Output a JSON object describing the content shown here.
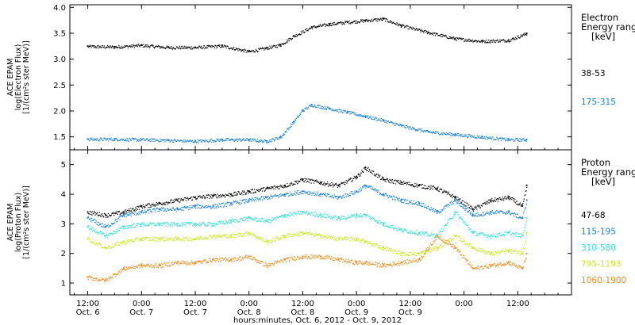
{
  "chart_data": [
    {
      "type": "scatter",
      "panel": "electron",
      "ylabel_lines": [
        "ACE EPAM",
        "log(Electron Flux)",
        "[1/(cm²s ster MeV)]"
      ],
      "ylim": [
        1.25,
        4.05
      ],
      "yticks": [
        1.5,
        2.0,
        2.5,
        3.0,
        3.5,
        4.0
      ],
      "ytick_labels": [
        "1.5",
        "2.0",
        "2.5",
        "3.0",
        "3.5",
        "4.0"
      ],
      "legend_title_lines": [
        "Electron",
        "Energy range",
        "[keV]"
      ],
      "series": [
        {
          "name": "38-53",
          "color": "#000000",
          "x": [
            0,
            6,
            12,
            18,
            24,
            30,
            36,
            40,
            43,
            46,
            50,
            54,
            58,
            62,
            66,
            70,
            76,
            82,
            88,
            94,
            98
          ],
          "y": [
            3.25,
            3.24,
            3.27,
            3.23,
            3.23,
            3.26,
            3.15,
            3.22,
            3.28,
            3.45,
            3.62,
            3.68,
            3.72,
            3.75,
            3.78,
            3.65,
            3.52,
            3.4,
            3.35,
            3.37,
            3.5
          ]
        },
        {
          "name": "175-315",
          "color": "#1a7fd4",
          "x": [
            0,
            6,
            12,
            18,
            24,
            30,
            36,
            40,
            43,
            46,
            48,
            50,
            54,
            58,
            62,
            66,
            70,
            76,
            82,
            88,
            94,
            98
          ],
          "y": [
            1.46,
            1.46,
            1.45,
            1.44,
            1.42,
            1.45,
            1.45,
            1.42,
            1.5,
            1.8,
            2.02,
            2.12,
            2.05,
            1.98,
            1.9,
            1.82,
            1.72,
            1.6,
            1.55,
            1.5,
            1.45,
            1.45
          ]
        }
      ]
    },
    {
      "type": "scatter",
      "panel": "proton",
      "ylabel_lines": [
        "ACE EPAM",
        "log(Proton Flux)",
        "[1/(cm²s ster MeV)]"
      ],
      "ylim": [
        0.6,
        5.5
      ],
      "yticks": [
        1,
        2,
        3,
        4,
        5
      ],
      "ytick_labels": [
        "1",
        "2",
        "3",
        "4",
        "5"
      ],
      "legend_title_lines": [
        "Proton",
        "Energy range",
        "[keV]"
      ],
      "series": [
        {
          "name": "47-68",
          "color": "#000000",
          "x": [
            0,
            4,
            8,
            12,
            16,
            20,
            24,
            28,
            32,
            36,
            40,
            44,
            48,
            52,
            56,
            60,
            62,
            66,
            70,
            74,
            78,
            82,
            86,
            90,
            94,
            97,
            98
          ],
          "y": [
            3.4,
            3.3,
            3.4,
            3.6,
            3.7,
            3.8,
            3.9,
            3.95,
            4.0,
            4.1,
            4.2,
            4.3,
            4.5,
            4.4,
            4.3,
            4.6,
            4.9,
            4.5,
            4.4,
            4.3,
            4.2,
            3.9,
            3.5,
            3.8,
            3.9,
            3.6,
            4.3
          ]
        },
        {
          "name": "115-195",
          "color": "#1a7fd4",
          "x": [
            0,
            4,
            8,
            12,
            16,
            20,
            24,
            28,
            32,
            36,
            40,
            44,
            48,
            52,
            56,
            60,
            62,
            66,
            70,
            74,
            78,
            82,
            86,
            90,
            94,
            97,
            98
          ],
          "y": [
            3.2,
            2.9,
            3.3,
            3.4,
            3.5,
            3.5,
            3.6,
            3.6,
            3.7,
            3.8,
            3.9,
            4.0,
            4.1,
            4.0,
            3.9,
            4.1,
            4.3,
            4.0,
            3.8,
            3.7,
            3.4,
            3.8,
            3.3,
            3.4,
            3.4,
            3.2,
            3.8
          ]
        },
        {
          "name": "310-580",
          "color": "#2de0d8",
          "x": [
            0,
            4,
            8,
            12,
            16,
            20,
            24,
            28,
            32,
            36,
            40,
            44,
            48,
            52,
            56,
            60,
            62,
            66,
            70,
            74,
            78,
            82,
            86,
            90,
            94,
            97,
            98
          ],
          "y": [
            2.9,
            2.6,
            2.9,
            3.0,
            3.0,
            3.0,
            3.0,
            3.0,
            3.1,
            3.2,
            3.1,
            3.3,
            3.4,
            3.3,
            3.2,
            3.3,
            3.3,
            3.0,
            2.8,
            2.7,
            2.6,
            3.4,
            2.7,
            2.6,
            2.7,
            2.6,
            3.2
          ]
        },
        {
          "name": "795-1193",
          "color": "#c8e81c",
          "x": [
            0,
            4,
            8,
            12,
            16,
            20,
            24,
            28,
            32,
            36,
            40,
            44,
            48,
            52,
            56,
            60,
            62,
            66,
            70,
            74,
            78,
            82,
            86,
            90,
            94,
            97,
            98
          ],
          "y": [
            2.5,
            2.2,
            2.4,
            2.5,
            2.5,
            2.5,
            2.5,
            2.6,
            2.6,
            2.7,
            2.4,
            2.6,
            2.7,
            2.6,
            2.5,
            2.5,
            2.4,
            2.2,
            2.0,
            2.0,
            2.2,
            2.6,
            2.2,
            2.0,
            2.1,
            2.0,
            2.7
          ]
        },
        {
          "name": "1060-1900",
          "color": "#f08a1a",
          "x": [
            0,
            4,
            8,
            12,
            16,
            20,
            24,
            28,
            32,
            36,
            40,
            44,
            48,
            52,
            56,
            60,
            62,
            66,
            70,
            74,
            78,
            82,
            86,
            90,
            94,
            97,
            98
          ],
          "y": [
            1.2,
            1.1,
            1.5,
            1.6,
            1.6,
            1.7,
            1.7,
            1.8,
            1.8,
            1.9,
            1.6,
            1.8,
            1.9,
            1.9,
            1.8,
            1.7,
            1.7,
            1.6,
            1.7,
            1.8,
            2.6,
            2.2,
            1.5,
            1.6,
            1.7,
            1.5,
            2.0
          ]
        }
      ]
    }
  ],
  "x_axis": {
    "xlim": [
      -4,
      108
    ],
    "ticks": [
      0,
      12,
      24,
      36,
      48,
      60,
      72,
      84,
      96
    ],
    "time_labels": [
      "12:00",
      "0:00",
      "12:00",
      "0:00",
      "12:00",
      "0:00",
      "12:00",
      "0:00",
      "12:00"
    ],
    "date_labels": [
      "Oct. 6",
      "Oct. 7",
      "Oct. 7",
      "Oct. 8",
      "Oct. 8",
      "Oct. 9",
      "Oct. 9",
      "",
      ""
    ],
    "xlabel": "hours:minutes, Oct. 6, 2012 - Oct. 9, 2012"
  }
}
